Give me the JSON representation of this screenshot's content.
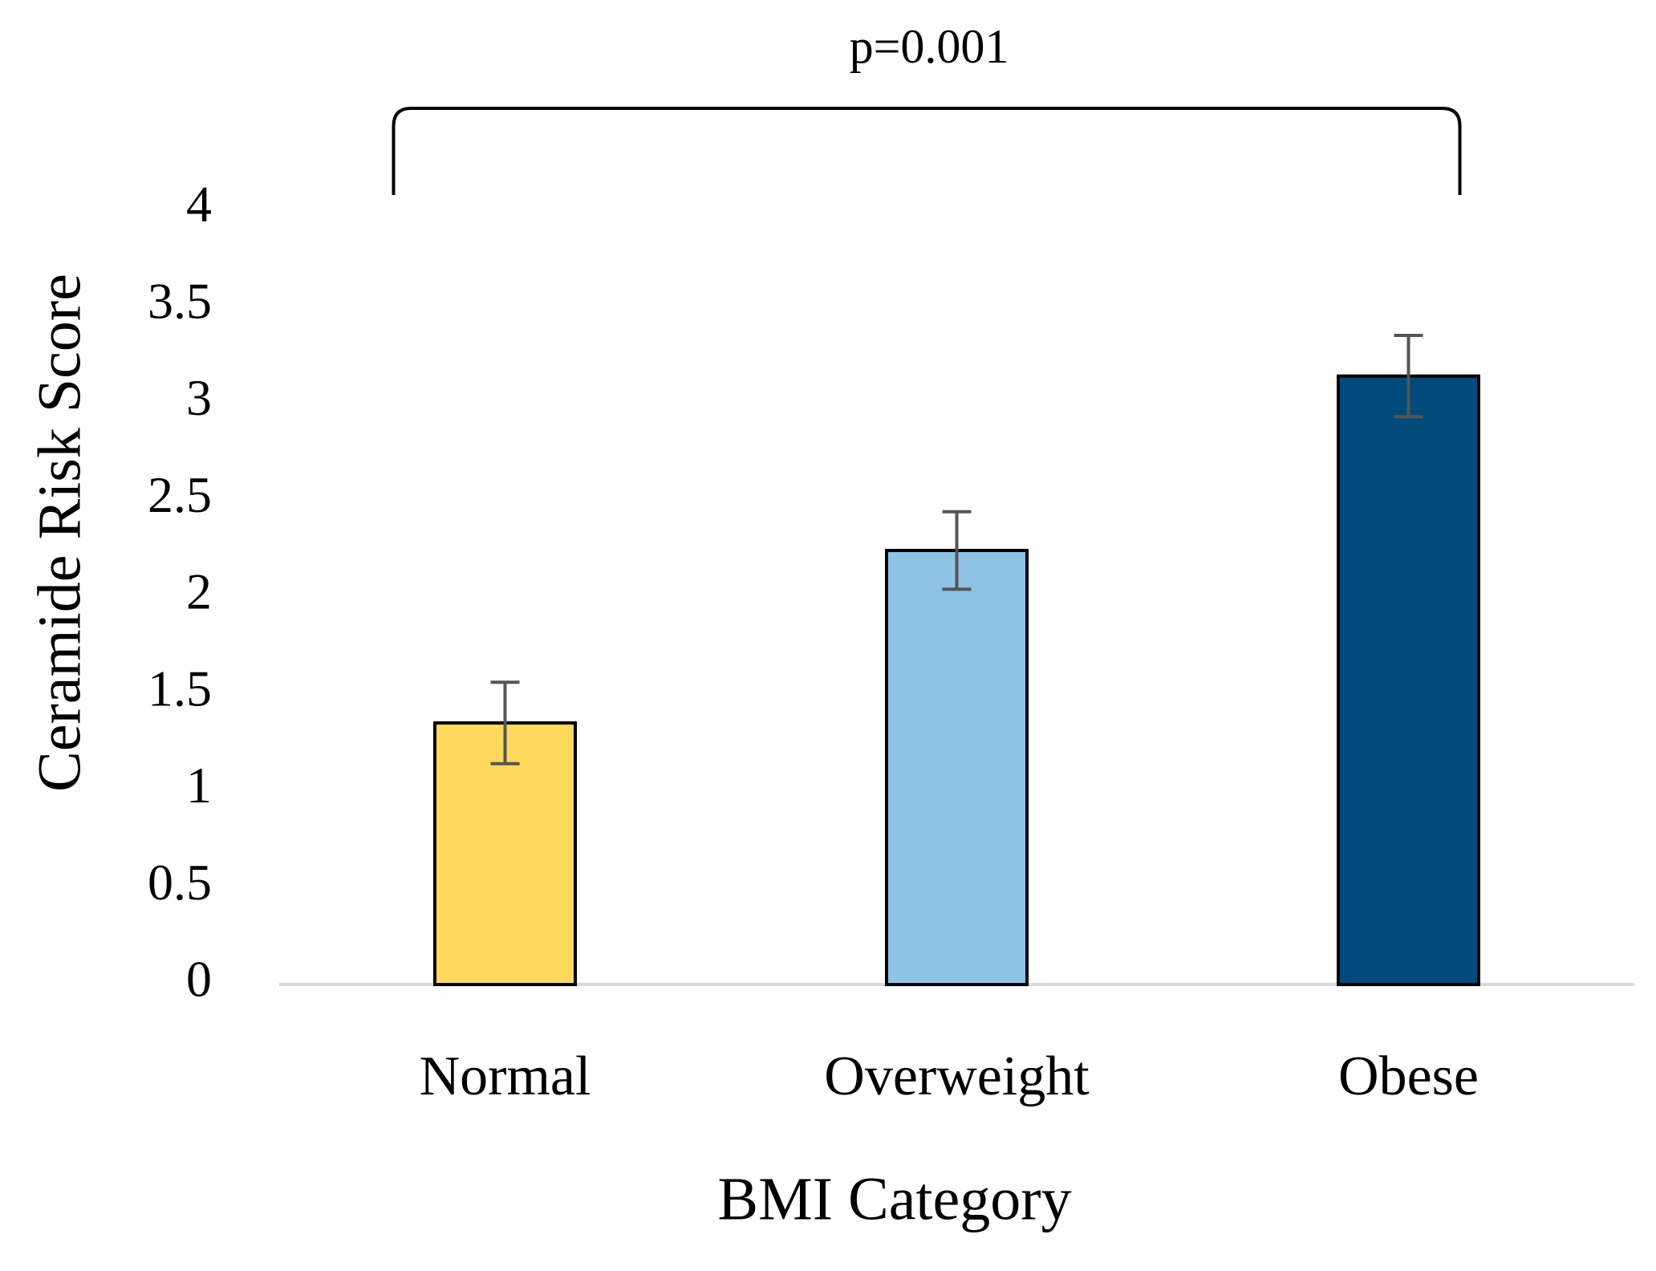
{
  "chart_data": {
    "type": "bar",
    "annotation": "p=0.001",
    "xlabel": "BMI Category",
    "ylabel": "Ceramide Risk Score",
    "categories": [
      "Normal",
      "Overweight",
      "Obese"
    ],
    "values": [
      1.35,
      2.24,
      3.14
    ],
    "errors": [
      0.21,
      0.2,
      0.21
    ],
    "colors": [
      "#ffd95c",
      "#8ec3e6",
      "#004b7b"
    ],
    "ylim": [
      0,
      4
    ],
    "yticks": [
      0,
      0.5,
      1,
      1.5,
      2,
      2.5,
      3,
      3.5,
      4
    ],
    "grid": false
  }
}
